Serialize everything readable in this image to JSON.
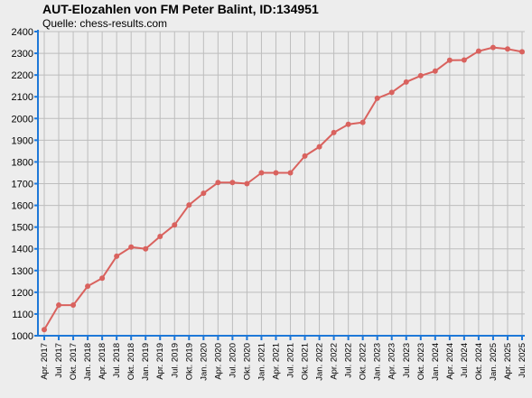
{
  "chart_data": {
    "type": "line",
    "title": "AUT-Elozahlen von FM Peter Balint, ID:134951",
    "subtitle": "Quelle: chess-results.com",
    "xlabel": "",
    "ylabel": "",
    "ylim": [
      1000,
      2400
    ],
    "yticks": [
      1000,
      1100,
      1200,
      1300,
      1400,
      1500,
      1600,
      1700,
      1800,
      1900,
      2000,
      2100,
      2200,
      2300,
      2400
    ],
    "categories": [
      "Apr. 2017",
      "Jul. 2017",
      "Okt. 2017",
      "Jan. 2018",
      "Apr. 2018",
      "Jul. 2018",
      "Okt. 2018",
      "Jan. 2019",
      "Apr. 2019",
      "Jul. 2019",
      "Okt. 2019",
      "Jan. 2020",
      "Apr. 2020",
      "Jul. 2020",
      "Okt. 2020",
      "Jan. 2021",
      "Apr. 2021",
      "Jul. 2021",
      "Okt. 2021",
      "Jan. 2022",
      "Apr. 2022",
      "Jul. 2022",
      "Okt. 2022",
      "Jan. 2023",
      "Apr. 2023",
      "Jul. 2023",
      "Okt. 2023",
      "Jan. 2024",
      "Apr. 2024",
      "Jul. 2024",
      "Okt. 2024",
      "Jan. 2025",
      "Apr. 2025",
      "Jul. 2025"
    ],
    "values": [
      1028,
      1141,
      1141,
      1228,
      1265,
      1366,
      1408,
      1400,
      1457,
      1510,
      1602,
      1656,
      1705,
      1705,
      1700,
      1750,
      1750,
      1750,
      1827,
      1870,
      1935,
      1973,
      1982,
      2093,
      2120,
      2168,
      2197,
      2218,
      2268,
      2269,
      2310,
      2327,
      2320,
      2307
    ],
    "grid": true,
    "legend": "none",
    "line_color": "#d9625e",
    "axis_color": "#1e78d8",
    "grid_color": "#bdbdbd",
    "background": "#ededed"
  }
}
